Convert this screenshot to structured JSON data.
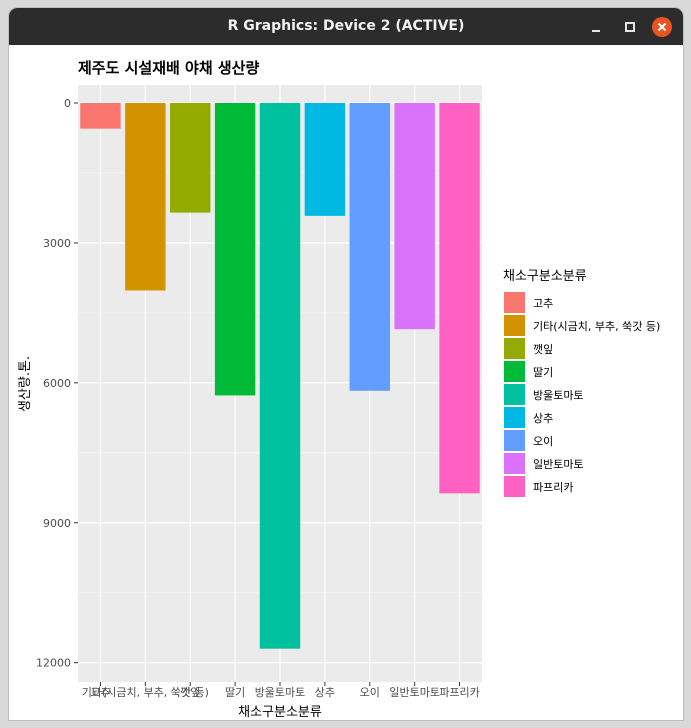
{
  "window": {
    "title": "R Graphics: Device 2 (ACTIVE)",
    "close_color": "#e95420"
  },
  "chart_data": {
    "type": "bar",
    "title": "제주도 시설재배 야채 생산량",
    "xlabel": "채소구분소분류",
    "ylabel": "생산량.톤.",
    "y_reversed": true,
    "ylim": [
      0,
      12200
    ],
    "yticks": [
      0,
      3000,
      6000,
      9000,
      12000
    ],
    "yticklabels": [
      "0",
      "3000",
      "6000",
      "9000",
      "12000"
    ],
    "grid": true,
    "legend_position": "right",
    "legend_title": "채소구분소분류",
    "categories": [
      "고추",
      "기타(시금치, 부추, 쑥갓 등)",
      "깻잎",
      "딸기",
      "방울토마토",
      "상추",
      "오이",
      "일반토마토",
      "파프리카"
    ],
    "values": [
      550,
      4020,
      2350,
      6270,
      11700,
      2420,
      6170,
      4850,
      8370
    ],
    "colors": [
      "#F8766D",
      "#D39200",
      "#93AA00",
      "#00BA38",
      "#00C19F",
      "#00B9E3",
      "#619CFF",
      "#DB72FB",
      "#FF61C3"
    ]
  }
}
